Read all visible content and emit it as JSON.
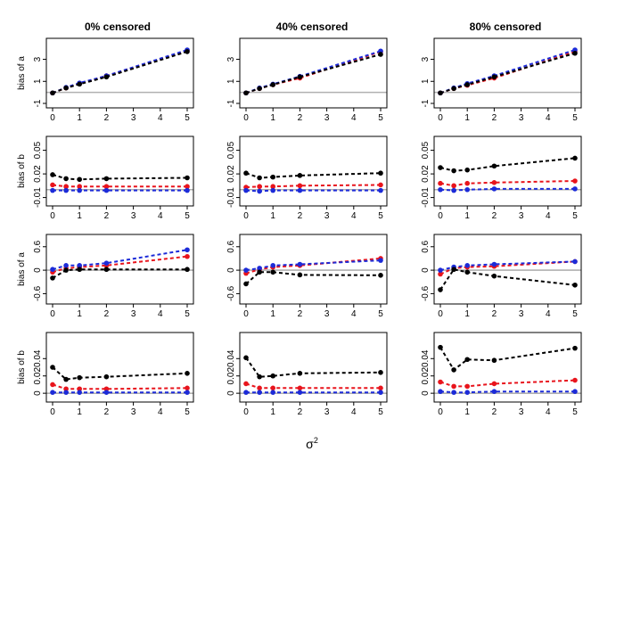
{
  "figure": {
    "column_titles": [
      "0% censored",
      "40% censored",
      "80% censored"
    ],
    "xlabel": "σ",
    "xlabel_superscript": "2"
  },
  "series_colors": {
    "black": "#000000",
    "red": "#e8141c",
    "blue": "#1c2bd8",
    "reference_line": "#b0b0b0"
  },
  "chart_data": [
    {
      "type": "line",
      "row": 0,
      "col": 0,
      "title": "0% censored",
      "ylabel": "bias of a",
      "x": [
        0,
        0.5,
        1,
        2,
        5
      ],
      "xlim": [
        0,
        5
      ],
      "xticks": [
        0,
        1,
        2,
        3,
        4,
        5
      ],
      "ylim": [
        -1,
        4.5
      ],
      "yticks": [
        -1,
        1,
        3
      ],
      "hline": 0,
      "series": [
        {
          "name": "red",
          "color": "#e8141c",
          "values": [
            -0.05,
            0.4,
            0.8,
            1.5,
            3.8
          ]
        },
        {
          "name": "blue",
          "color": "#1c2bd8",
          "values": [
            -0.05,
            0.45,
            0.85,
            1.5,
            3.85
          ]
        },
        {
          "name": "black",
          "color": "#000000",
          "values": [
            -0.05,
            0.4,
            0.75,
            1.4,
            3.7
          ]
        }
      ]
    },
    {
      "type": "line",
      "row": 0,
      "col": 1,
      "title": "40% censored",
      "ylabel": "",
      "x": [
        0,
        0.5,
        1,
        2,
        5
      ],
      "xlim": [
        0,
        5
      ],
      "xticks": [
        0,
        1,
        2,
        3,
        4,
        5
      ],
      "ylim": [
        -1,
        4.5
      ],
      "yticks": [
        -1,
        1,
        3
      ],
      "hline": 0,
      "series": [
        {
          "name": "red",
          "color": "#e8141c",
          "values": [
            -0.05,
            0.35,
            0.7,
            1.3,
            3.7
          ]
        },
        {
          "name": "blue",
          "color": "#1c2bd8",
          "values": [
            -0.05,
            0.4,
            0.75,
            1.45,
            3.75
          ]
        },
        {
          "name": "black",
          "color": "#000000",
          "values": [
            -0.05,
            0.35,
            0.7,
            1.4,
            3.45
          ]
        }
      ]
    },
    {
      "type": "line",
      "row": 0,
      "col": 2,
      "title": "80% censored",
      "ylabel": "",
      "x": [
        0,
        0.5,
        1,
        2,
        5
      ],
      "xlim": [
        0,
        5
      ],
      "xticks": [
        0,
        1,
        2,
        3,
        4,
        5
      ],
      "ylim": [
        -1,
        4.5
      ],
      "yticks": [
        -1,
        1,
        3
      ],
      "hline": 0,
      "series": [
        {
          "name": "red",
          "color": "#e8141c",
          "values": [
            -0.05,
            0.35,
            0.65,
            1.3,
            3.7
          ]
        },
        {
          "name": "blue",
          "color": "#1c2bd8",
          "values": [
            -0.05,
            0.4,
            0.8,
            1.5,
            3.85
          ]
        },
        {
          "name": "black",
          "color": "#000000",
          "values": [
            -0.05,
            0.35,
            0.7,
            1.4,
            3.55
          ]
        }
      ]
    },
    {
      "type": "line",
      "row": 1,
      "col": 0,
      "title": "",
      "ylabel": "bias of b",
      "x": [
        0,
        0.5,
        1,
        2,
        5
      ],
      "xlim": [
        0,
        5
      ],
      "xticks": [
        0,
        1,
        2,
        3,
        4,
        5
      ],
      "ylim": [
        -0.015,
        0.062
      ],
      "yticks": [
        -0.01,
        0.02,
        0.05
      ],
      "hline": 0,
      "series": [
        {
          "name": "red",
          "color": "#e8141c",
          "values": [
            0.006,
            0.004,
            0.004,
            0.004,
            0.004
          ]
        },
        {
          "name": "blue",
          "color": "#1c2bd8",
          "values": [
            -0.001,
            -0.001,
            -0.001,
            -0.001,
            -0.001
          ]
        },
        {
          "name": "black",
          "color": "#000000",
          "values": [
            0.019,
            0.014,
            0.013,
            0.014,
            0.015
          ]
        }
      ]
    },
    {
      "type": "line",
      "row": 1,
      "col": 1,
      "title": "",
      "ylabel": "",
      "x": [
        0,
        0.5,
        1,
        2,
        5
      ],
      "xlim": [
        0,
        5
      ],
      "xticks": [
        0,
        1,
        2,
        3,
        4,
        5
      ],
      "ylim": [
        -0.015,
        0.062
      ],
      "yticks": [
        -0.01,
        0.02,
        0.05
      ],
      "hline": 0,
      "series": [
        {
          "name": "red",
          "color": "#e8141c",
          "values": [
            0.003,
            0.004,
            0.004,
            0.005,
            0.006
          ]
        },
        {
          "name": "blue",
          "color": "#1c2bd8",
          "values": [
            -0.001,
            -0.002,
            -0.001,
            -0.001,
            -0.001
          ]
        },
        {
          "name": "black",
          "color": "#000000",
          "values": [
            0.021,
            0.015,
            0.016,
            0.018,
            0.021
          ]
        }
      ]
    },
    {
      "type": "line",
      "row": 1,
      "col": 2,
      "title": "",
      "ylabel": "",
      "x": [
        0,
        0.5,
        1,
        2,
        5
      ],
      "xlim": [
        0,
        5
      ],
      "xticks": [
        0,
        1,
        2,
        3,
        4,
        5
      ],
      "ylim": [
        -0.015,
        0.062
      ],
      "yticks": [
        -0.01,
        0.02,
        0.05
      ],
      "hline": 0,
      "series": [
        {
          "name": "red",
          "color": "#e8141c",
          "values": [
            0.008,
            0.005,
            0.008,
            0.009,
            0.011
          ]
        },
        {
          "name": "blue",
          "color": "#1c2bd8",
          "values": [
            0.0,
            -0.001,
            0.0,
            0.001,
            0.001
          ]
        },
        {
          "name": "black",
          "color": "#000000",
          "values": [
            0.028,
            0.024,
            0.025,
            0.03,
            0.04
          ]
        }
      ]
    },
    {
      "type": "line",
      "row": 2,
      "col": 0,
      "title": "",
      "ylabel": "bias of a",
      "x": [
        0,
        0.5,
        1,
        2,
        5
      ],
      "xlim": [
        0,
        5
      ],
      "xticks": [
        0,
        1,
        2,
        3,
        4,
        5
      ],
      "ylim": [
        -0.75,
        0.8
      ],
      "yticks": [
        -0.6,
        0.0,
        0.6
      ],
      "hline": 0,
      "series": [
        {
          "name": "red",
          "color": "#e8141c",
          "values": [
            -0.05,
            0.05,
            0.08,
            0.12,
            0.35
          ]
        },
        {
          "name": "blue",
          "color": "#1c2bd8",
          "values": [
            0.02,
            0.12,
            0.12,
            0.18,
            0.52
          ]
        },
        {
          "name": "black",
          "color": "#000000",
          "values": [
            -0.2,
            0.0,
            0.02,
            0.02,
            0.02
          ]
        }
      ]
    },
    {
      "type": "line",
      "row": 2,
      "col": 1,
      "title": "",
      "ylabel": "",
      "x": [
        0,
        0.5,
        1,
        2,
        5
      ],
      "xlim": [
        0,
        5
      ],
      "xticks": [
        0,
        1,
        2,
        3,
        4,
        5
      ],
      "ylim": [
        -0.75,
        0.8
      ],
      "yticks": [
        -0.6,
        0.0,
        0.6
      ],
      "hline": 0,
      "series": [
        {
          "name": "red",
          "color": "#e8141c",
          "values": [
            -0.08,
            0.02,
            0.08,
            0.12,
            0.3
          ]
        },
        {
          "name": "blue",
          "color": "#1c2bd8",
          "values": [
            0.0,
            0.05,
            0.12,
            0.15,
            0.25
          ]
        },
        {
          "name": "black",
          "color": "#000000",
          "values": [
            -0.35,
            -0.05,
            -0.05,
            -0.12,
            -0.13
          ]
        }
      ]
    },
    {
      "type": "line",
      "row": 2,
      "col": 2,
      "title": "",
      "ylabel": "",
      "x": [
        0,
        0.5,
        1,
        2,
        5
      ],
      "xlim": [
        0,
        5
      ],
      "xticks": [
        0,
        1,
        2,
        3,
        4,
        5
      ],
      "ylim": [
        -0.75,
        0.8
      ],
      "yticks": [
        -0.6,
        0.0,
        0.6
      ],
      "hline": 0,
      "series": [
        {
          "name": "red",
          "color": "#e8141c",
          "values": [
            -0.1,
            0.05,
            0.08,
            0.1,
            0.22
          ]
        },
        {
          "name": "blue",
          "color": "#1c2bd8",
          "values": [
            0.0,
            0.08,
            0.12,
            0.15,
            0.22
          ]
        },
        {
          "name": "black",
          "color": "#000000",
          "values": [
            -0.5,
            0.02,
            -0.05,
            -0.15,
            -0.38
          ]
        }
      ]
    },
    {
      "type": "line",
      "row": 3,
      "col": 0,
      "title": "",
      "ylabel": "bias of b",
      "x": [
        0,
        0.5,
        1,
        2,
        5
      ],
      "xlim": [
        0,
        5
      ],
      "xticks": [
        0,
        1,
        2,
        3,
        4,
        5
      ],
      "ylim": [
        -0.005,
        0.065
      ],
      "yticks": [
        0.0,
        0.02,
        0.04
      ],
      "hline": 0,
      "series": [
        {
          "name": "red",
          "color": "#e8141c",
          "values": [
            0.01,
            0.005,
            0.005,
            0.005,
            0.006
          ]
        },
        {
          "name": "blue",
          "color": "#1c2bd8",
          "values": [
            0.001,
            0.001,
            0.001,
            0.001,
            0.001
          ]
        },
        {
          "name": "black",
          "color": "#000000",
          "values": [
            0.03,
            0.016,
            0.018,
            0.019,
            0.023
          ]
        }
      ]
    },
    {
      "type": "line",
      "row": 3,
      "col": 1,
      "title": "",
      "ylabel": "",
      "x": [
        0,
        0.5,
        1,
        2,
        5
      ],
      "xlim": [
        0,
        5
      ],
      "xticks": [
        0,
        1,
        2,
        3,
        4,
        5
      ],
      "ylim": [
        -0.005,
        0.065
      ],
      "yticks": [
        0.0,
        0.02,
        0.04
      ],
      "hline": 0,
      "series": [
        {
          "name": "red",
          "color": "#e8141c",
          "values": [
            0.011,
            0.006,
            0.006,
            0.006,
            0.006
          ]
        },
        {
          "name": "blue",
          "color": "#1c2bd8",
          "values": [
            0.001,
            0.001,
            0.001,
            0.001,
            0.001
          ]
        },
        {
          "name": "black",
          "color": "#000000",
          "values": [
            0.041,
            0.019,
            0.02,
            0.023,
            0.024
          ]
        }
      ]
    },
    {
      "type": "line",
      "row": 3,
      "col": 2,
      "title": "",
      "ylabel": "",
      "x": [
        0,
        0.5,
        1,
        2,
        5
      ],
      "xlim": [
        0,
        5
      ],
      "xticks": [
        0,
        1,
        2,
        3,
        4,
        5
      ],
      "ylim": [
        -0.005,
        0.065
      ],
      "yticks": [
        0.0,
        0.02,
        0.04
      ],
      "hline": 0,
      "series": [
        {
          "name": "red",
          "color": "#e8141c",
          "values": [
            0.013,
            0.008,
            0.008,
            0.011,
            0.015
          ]
        },
        {
          "name": "blue",
          "color": "#1c2bd8",
          "values": [
            0.002,
            0.001,
            0.001,
            0.002,
            0.002
          ]
        },
        {
          "name": "black",
          "color": "#000000",
          "values": [
            0.053,
            0.027,
            0.039,
            0.038,
            0.052
          ]
        }
      ]
    }
  ]
}
